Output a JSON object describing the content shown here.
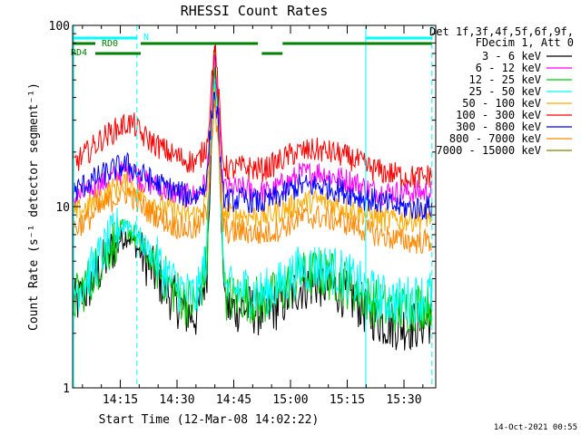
{
  "chart_data": {
    "type": "line",
    "title": "RHESSI Count Rates",
    "xlabel": "Start Time (12-Mar-08 14:02:22)",
    "ylabel": "Count Rate (s⁻¹ detector segment⁻¹)",
    "yscale": "log",
    "ylim": [
      1,
      100
    ],
    "xlim_minutes": [
      0,
      96
    ],
    "x_ticks": [
      {
        "label": "14:15",
        "value": 12.6
      },
      {
        "label": "14:30",
        "value": 27.6
      },
      {
        "label": "14:45",
        "value": 42.6
      },
      {
        "label": "15:00",
        "value": 57.6
      },
      {
        "label": "15:15",
        "value": 72.6
      },
      {
        "label": "15:30",
        "value": 87.6
      }
    ],
    "y_ticks": [
      {
        "label": "1",
        "value": 1
      },
      {
        "label": "10",
        "value": 10
      },
      {
        "label": "100",
        "value": 100
      }
    ],
    "legend_position": "right",
    "legend_header": [
      "Det 1f,3f,4f,5f,6f,9f,",
      "FDecim 1, Att 0"
    ],
    "time_points": [
      0,
      4,
      8,
      12,
      14.5,
      16.5,
      18,
      22,
      26,
      30,
      33,
      35.5,
      36.5,
      37.5,
      38.5,
      39.5,
      40.5,
      42,
      45,
      50,
      52,
      55,
      58,
      60,
      65,
      70,
      75,
      78,
      82,
      86,
      90,
      93,
      95
    ],
    "series": [
      {
        "name": "3 - 6 keV",
        "color": "#000000",
        "values": [
          2.8,
          3.5,
          4.8,
          6.5,
          7.0,
          6.2,
          5.5,
          4.2,
          3.2,
          2.6,
          2.5,
          4.5,
          20,
          75,
          35,
          6,
          2.8,
          2.7,
          2.8,
          2.6,
          2.7,
          2.9,
          3.3,
          3.6,
          3.8,
          3.5,
          3.0,
          2.6,
          2.3,
          2.2,
          2.2,
          2.3,
          2.4
        ]
      },
      {
        "name": "6 - 12 keV",
        "color": "#ff00ff",
        "values": [
          11,
          12,
          13.5,
          15,
          16,
          15.5,
          14,
          13,
          12,
          11.5,
          11.5,
          14,
          30,
          65,
          35,
          14,
          12.5,
          12.5,
          12.5,
          12,
          12,
          13,
          14,
          15,
          15.5,
          14.5,
          13.5,
          12.5,
          12,
          12,
          12,
          12,
          12
        ]
      },
      {
        "name": "12 - 25 keV",
        "color": "#00cc00",
        "values": [
          3.0,
          3.8,
          5.2,
          7.0,
          7.6,
          6.8,
          6.0,
          4.7,
          3.6,
          3.0,
          2.9,
          5,
          22,
          55,
          30,
          6.5,
          3.2,
          3.1,
          3.2,
          3.0,
          3.1,
          3.4,
          3.8,
          4.1,
          4.3,
          4.0,
          3.5,
          3.1,
          2.8,
          2.7,
          2.8,
          2.9,
          3.0
        ]
      },
      {
        "name": "25 - 50 keV",
        "color": "#00ffff",
        "values": [
          3.3,
          4.1,
          5.6,
          7.5,
          8.2,
          7.3,
          6.5,
          5.1,
          3.9,
          3.3,
          3.2,
          5.5,
          24,
          52,
          28,
          7,
          3.5,
          3.4,
          3.5,
          3.3,
          3.4,
          3.7,
          4.2,
          4.5,
          4.7,
          4.4,
          3.8,
          3.4,
          3.1,
          3.0,
          3.1,
          3.2,
          3.3
        ]
      },
      {
        "name": "50 - 100 keV",
        "color": "#ffaa00",
        "values": [
          9,
          10,
          11.5,
          13,
          13.5,
          12.5,
          11.5,
          10.5,
          9.5,
          9,
          9,
          11,
          25,
          45,
          28,
          10,
          9,
          9,
          9,
          8.8,
          9,
          9.5,
          10,
          10.5,
          10.8,
          10.2,
          9.5,
          9,
          8.5,
          8.5,
          8.5,
          8.7,
          9
        ]
      },
      {
        "name": "100 - 300 keV",
        "color": "#ff0000",
        "values": [
          17,
          20,
          24,
          27,
          29,
          28,
          25,
          22,
          19.5,
          18,
          17.5,
          22,
          40,
          80,
          45,
          19,
          16.5,
          16,
          16.5,
          16,
          16.5,
          18,
          19.5,
          20,
          20.5,
          19.5,
          18,
          16.5,
          15.5,
          15,
          14.5,
          14.5,
          15
        ]
      },
      {
        "name": "300 - 800 keV",
        "color": "#0000ff",
        "values": [
          12,
          13.5,
          15,
          16.5,
          17,
          16,
          15,
          13.5,
          12.5,
          11.5,
          11.5,
          14,
          28,
          42,
          28,
          12,
          11,
          10.8,
          11,
          10.5,
          10.8,
          11.5,
          12.5,
          13,
          13,
          12.5,
          11.5,
          11,
          10.5,
          10,
          9.8,
          9.8,
          10
        ]
      },
      {
        "name": "800 - 7000 keV",
        "color": "#ff8800",
        "values": [
          7.5,
          8.5,
          10,
          11.5,
          12,
          11,
          10,
          9,
          8,
          7.5,
          7.5,
          9.5,
          20,
          36,
          22,
          8.2,
          7.3,
          7.2,
          7.3,
          7,
          7.2,
          7.6,
          8.2,
          8.6,
          8.8,
          8.4,
          7.8,
          7.3,
          6.9,
          6.6,
          6.4,
          6.4,
          6.5
        ]
      },
      {
        "name": "7000 - 15000 keV",
        "color": "#808000",
        "values": [
          null,
          null,
          null,
          null,
          null,
          null,
          null,
          null,
          null,
          null,
          null,
          null,
          null,
          70,
          null,
          null,
          null,
          null,
          null,
          null,
          null,
          null,
          null,
          null,
          null,
          null,
          null,
          null,
          null,
          null,
          null,
          null,
          null
        ]
      }
    ],
    "vertical_markers_minutes": [
      {
        "t": 0.3,
        "color": "#00ffff",
        "style": "solid"
      },
      {
        "t": 17.0,
        "color": "#00ffff",
        "style": "dashed"
      },
      {
        "t": 77.5,
        "color": "#00ffff",
        "style": "solid"
      },
      {
        "t": 95.0,
        "color": "#00ffff",
        "style": "dashed"
      }
    ],
    "flag_bars": [
      {
        "label": "",
        "color": "#00ffff",
        "row": 0,
        "segments": [
          [
            0,
            17
          ],
          [
            77.5,
            95
          ]
        ]
      },
      {
        "label": "RD0",
        "color": "#008000",
        "row": 1,
        "segments": [
          [
            0,
            6
          ],
          [
            18,
            49
          ],
          [
            55.5,
            95
          ]
        ]
      },
      {
        "label": "RD4",
        "color": "#008000",
        "row": 2,
        "segments": [
          [
            6,
            18
          ],
          [
            50,
            55.5
          ]
        ]
      }
    ],
    "flag_text": "N",
    "footer_date": "14-Oct-2021 00:55"
  }
}
